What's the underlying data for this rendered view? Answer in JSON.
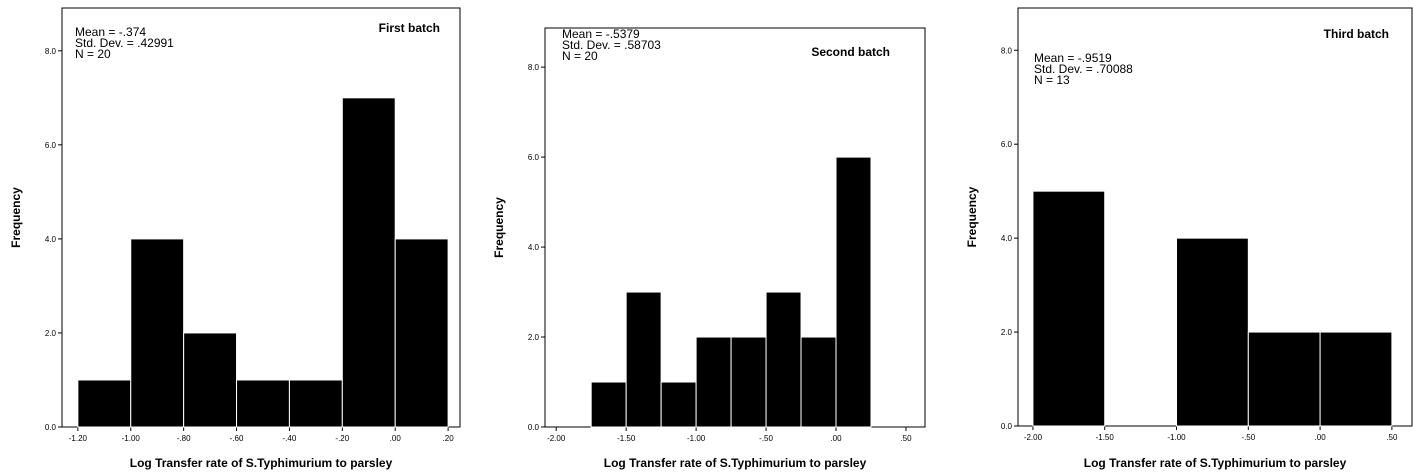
{
  "chart_data": [
    {
      "type": "histogram",
      "title": "First batch",
      "stats": [
        "Mean = -.374",
        "Std. Dev. = .42991",
        "N = 20"
      ],
      "xlabel": "Log Transfer rate of S.Typhimurium to parsley",
      "ylabel": "Frequency",
      "bins": [
        -1.2,
        -1.0,
        -0.8,
        -0.6,
        -0.4,
        -0.2,
        0.0,
        0.2
      ],
      "values": [
        1,
        4,
        2,
        1,
        1,
        7,
        4
      ],
      "color": "#000000",
      "xlim": [
        -1.26,
        0.245
      ],
      "ylim": [
        0,
        8.91
      ],
      "xticks": [
        {
          "value": -1.2,
          "label": "-1.20"
        },
        {
          "value": -1.0,
          "label": "-1.00"
        },
        {
          "value": -0.8,
          "label": "-.80"
        },
        {
          "value": -0.6,
          "label": "-.60"
        },
        {
          "value": -0.4,
          "label": "-.40"
        },
        {
          "value": -0.2,
          "label": "-.20"
        },
        {
          "value": 0,
          "label": ".00"
        },
        {
          "value": 0.2,
          "label": ".20"
        }
      ],
      "yticks": [
        {
          "value": 0,
          "label": "0.0"
        },
        {
          "value": 2,
          "label": "2.0"
        },
        {
          "value": 4,
          "label": "4.0"
        },
        {
          "value": 6,
          "label": "6.0"
        },
        {
          "value": 8,
          "label": "8.0"
        }
      ]
    },
    {
      "type": "histogram",
      "title": "Second batch",
      "stats": [
        "Mean = -.5379",
        "Std. Dev. = .58703",
        "N = 20"
      ],
      "xlabel": "Log Transfer rate of S.Typhimurium to parsley",
      "ylabel": "Frequency",
      "bins": [
        -1.75,
        -1.5,
        -1.25,
        -1.0,
        -0.75,
        -0.5,
        -0.25,
        0.0,
        0.25
      ],
      "values": [
        1,
        3,
        1,
        2,
        2,
        3,
        2,
        6
      ],
      "color": "#000000",
      "xlim": [
        -2.08,
        0.636
      ],
      "ylim": [
        0,
        8.87
      ],
      "xticks": [
        {
          "value": -2.0,
          "label": "-2.00"
        },
        {
          "value": -1.5,
          "label": "-1.50"
        },
        {
          "value": -1.0,
          "label": "-1.00"
        },
        {
          "value": -0.5,
          "label": "-.50"
        },
        {
          "value": 0,
          "label": ".00"
        },
        {
          "value": 0.5,
          "label": ".50"
        }
      ],
      "yticks": [
        {
          "value": 0,
          "label": "0.0"
        },
        {
          "value": 2,
          "label": "2.0"
        },
        {
          "value": 4,
          "label": "4.0"
        },
        {
          "value": 6,
          "label": "6.0"
        },
        {
          "value": 8,
          "label": "8.0"
        }
      ]
    },
    {
      "type": "histogram",
      "title": "Third batch",
      "stats": [
        "Mean = -.9519",
        "Std. Dev. = .70088",
        "N = 13"
      ],
      "xlabel": "Log Transfer rate of S.Typhimurium to parsley",
      "ylabel": "Frequency",
      "bins": [
        -2.0,
        -1.5,
        -1.0,
        -0.5,
        0.0,
        0.5
      ],
      "values": [
        5,
        0,
        4,
        2,
        2
      ],
      "color": "#000000",
      "xlim": [
        -2.104,
        0.64
      ],
      "ylim": [
        0,
        8.9
      ],
      "xticks": [
        {
          "value": -2.0,
          "label": "-2.00"
        },
        {
          "value": -1.5,
          "label": "-1.50"
        },
        {
          "value": -1.0,
          "label": "-1.00"
        },
        {
          "value": -0.5,
          "label": "-.50"
        },
        {
          "value": 0,
          "label": ".00"
        },
        {
          "value": 0.5,
          "label": ".50"
        }
      ],
      "yticks": [
        {
          "value": 0,
          "label": "0.0"
        },
        {
          "value": 2,
          "label": "2.0"
        },
        {
          "value": 4,
          "label": "4.0"
        },
        {
          "value": 6,
          "label": "6.0"
        },
        {
          "value": 8,
          "label": "8.0"
        }
      ]
    }
  ]
}
